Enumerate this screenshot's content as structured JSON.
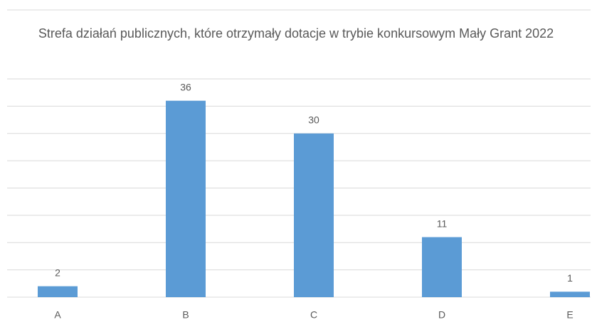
{
  "chart_data": {
    "type": "bar",
    "title": "Strefa działań publicznych, które otrzymały dotacje w trybie konkursowym Mały Grant 2022",
    "categories": [
      "A",
      "B",
      "C",
      "D",
      "E"
    ],
    "values": [
      2,
      36,
      30,
      11,
      1
    ],
    "color": "#5b9bd5",
    "ylim": [
      0,
      40
    ],
    "yticks": [
      0,
      5,
      10,
      15,
      20,
      25,
      30,
      35,
      40
    ],
    "grid": true
  }
}
